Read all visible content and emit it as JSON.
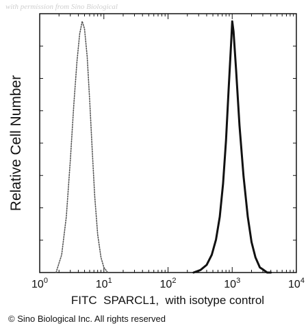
{
  "watermark": "with permission from Sino Biological",
  "copyright": "© Sino Biological Inc. All rights reserved",
  "chart_data": {
    "type": "line",
    "title": "",
    "xlabel": "FITC  SPARCL1,  with isotype control",
    "ylabel": "Relative Cell Number",
    "x_scale": "log",
    "xlim": [
      1,
      10000
    ],
    "ylim": [
      0,
      1.02
    ],
    "x_tick_values": [
      1,
      10,
      100,
      1000,
      10000
    ],
    "x_tick_labels": [
      {
        "base": "10",
        "exp": "0"
      },
      {
        "base": "10",
        "exp": "1"
      },
      {
        "base": "10",
        "exp": "2"
      },
      {
        "base": "10",
        "exp": "3"
      },
      {
        "base": "10",
        "exp": "4"
      }
    ],
    "y_tick_labels": "none",
    "legend": "none",
    "grid": false,
    "series": [
      {
        "style": "dotted",
        "color": "#555555",
        "x": [
          1.8,
          2.2,
          2.6,
          3.0,
          3.4,
          3.8,
          4.2,
          4.6,
          5.0,
          5.5,
          6.0,
          6.6,
          7.2,
          8.0,
          9.0,
          10.0,
          11.5
        ],
        "y": [
          0.0,
          0.07,
          0.22,
          0.44,
          0.66,
          0.83,
          0.94,
          0.99,
          0.96,
          0.85,
          0.68,
          0.48,
          0.3,
          0.15,
          0.06,
          0.02,
          0.0
        ]
      },
      {
        "style": "solid",
        "color": "#111111",
        "x": [
          250,
          320,
          400,
          480,
          560,
          640,
          720,
          800,
          880,
          960,
          1000,
          1050,
          1150,
          1300,
          1500,
          1750,
          2000,
          2300,
          2700,
          3100,
          3500,
          4000
        ],
        "y": [
          0.0,
          0.01,
          0.03,
          0.07,
          0.13,
          0.22,
          0.35,
          0.52,
          0.72,
          0.9,
          0.99,
          0.95,
          0.8,
          0.58,
          0.38,
          0.22,
          0.12,
          0.06,
          0.02,
          0.01,
          0.0,
          0.0
        ]
      }
    ]
  }
}
